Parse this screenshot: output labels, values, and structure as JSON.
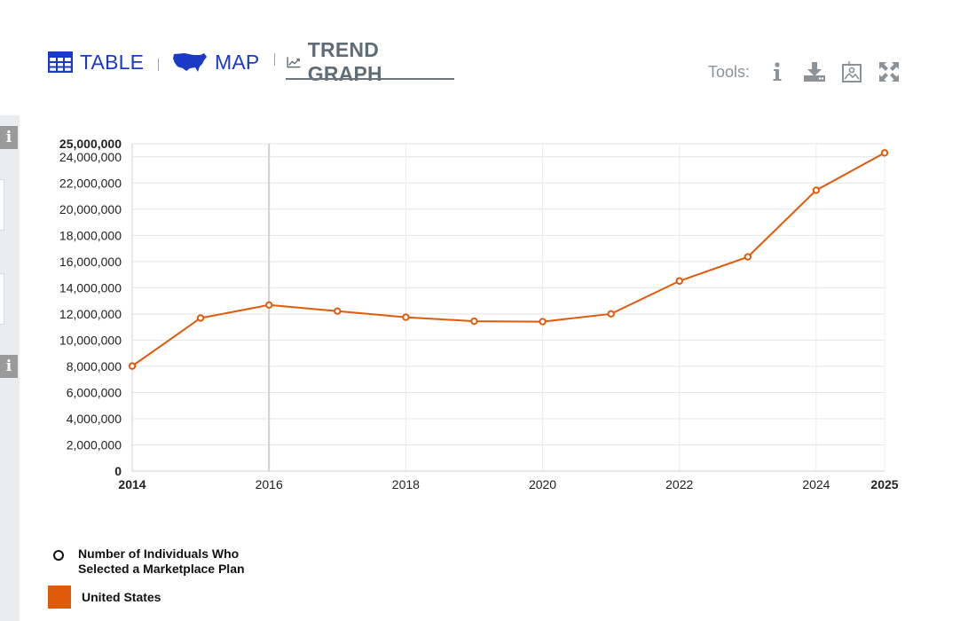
{
  "tabs": {
    "table_label": "TABLE",
    "map_label": "MAP",
    "trend_label": "TREND GRAPH"
  },
  "tools": {
    "label": "Tools:",
    "icons": [
      "info-icon",
      "download-icon",
      "image-export-icon",
      "fullscreen-icon"
    ]
  },
  "colors": {
    "series": "#e05a0c",
    "tab_link": "#1b39c7",
    "tab_active": "#606d77"
  },
  "legend": {
    "series_label": "Number of Individuals Who Selected a Marketplace Plan",
    "series_label_line1": "Number of Individuals Who",
    "series_label_line2": "Selected a Marketplace Plan",
    "location_label": "United States"
  },
  "chart_data": {
    "type": "line",
    "title": "",
    "xlabel": "",
    "ylabel": "",
    "x": [
      2014,
      2015,
      2016,
      2017,
      2018,
      2019,
      2020,
      2021,
      2022,
      2023,
      2024,
      2025
    ],
    "series": [
      {
        "name": "Number of Individuals Who Selected a Marketplace Plan",
        "location": "United States",
        "values": [
          8019763,
          11688074,
          12681874,
          12216003,
          11750175,
          11444141,
          11409877,
          12004365,
          14514788,
          16357030,
          21446150,
          24301935
        ]
      }
    ],
    "xlim": [
      2014,
      2025
    ],
    "ylim": [
      0,
      25000000
    ],
    "x_ticks": [
      "2014",
      "2016",
      "2018",
      "2020",
      "2022",
      "2024",
      "2025"
    ],
    "y_ticks": [
      "0",
      "2,000,000",
      "4,000,000",
      "6,000,000",
      "8,000,000",
      "10,000,000",
      "12,000,000",
      "14,000,000",
      "16,000,000",
      "18,000,000",
      "20,000,000",
      "22,000,000",
      "24,000,000",
      "25,000,000"
    ],
    "highlight_x": 2016,
    "grid": true
  }
}
